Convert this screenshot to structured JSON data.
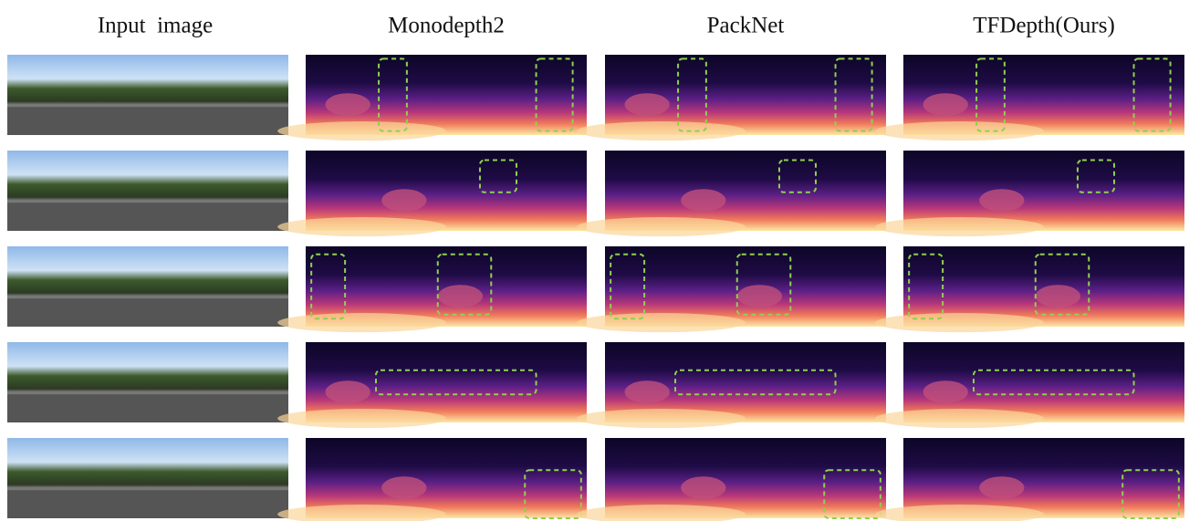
{
  "headers": [
    "Input  image",
    "Monodepth2",
    "PackNet",
    "TFDepth(Ours)"
  ]
}
